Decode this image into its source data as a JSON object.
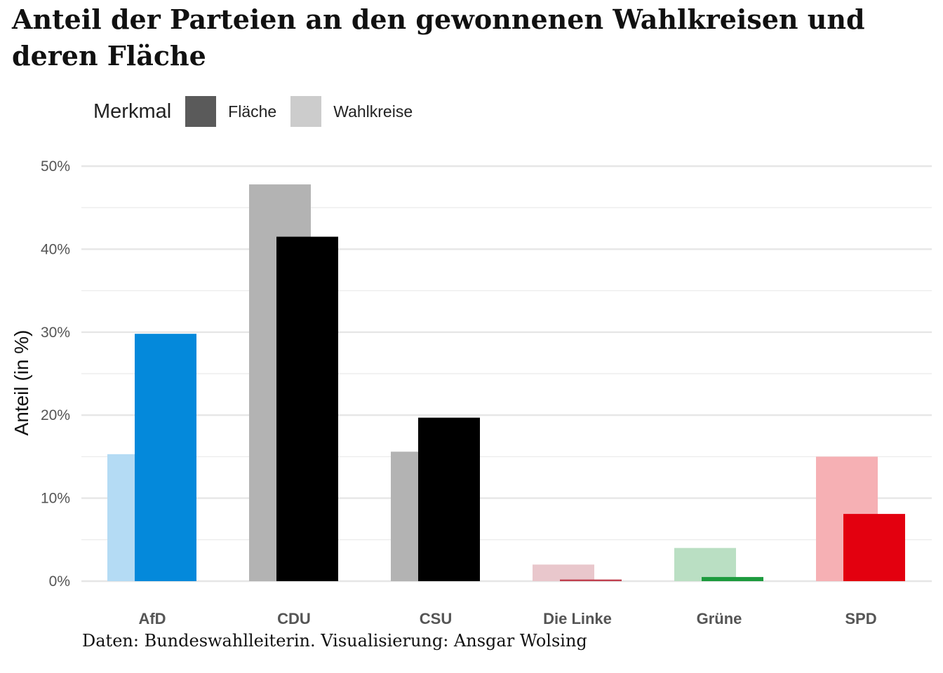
{
  "title": "Anteil der Parteien an den gewonnenen Wahlkreisen und deren Fläche",
  "caption": "Daten: Bundeswahlleiterin. Visualisierung: Ansgar Wolsing",
  "legend": {
    "title": "Merkmal",
    "items": [
      {
        "label": "Fläche",
        "color": "#5a5a5a"
      },
      {
        "label": "Wahlkreise",
        "color": "#cccccc"
      }
    ]
  },
  "chart_data": {
    "type": "bar",
    "categories": [
      "AfD",
      "CDU",
      "CSU",
      "Die Linke",
      "Grüne",
      "SPD"
    ],
    "series": [
      {
        "name": "Wahlkreise",
        "values": [
          15.3,
          47.8,
          15.6,
          2.0,
          4.0,
          15.0
        ]
      },
      {
        "name": "Fläche",
        "values": [
          29.8,
          41.5,
          19.7,
          0.2,
          0.5,
          8.1
        ]
      }
    ],
    "party_colors": [
      "#0489db",
      "#000000",
      "#000000",
      "#be3075",
      "#1aa037",
      "#e3000f"
    ],
    "wahlkreise_colors": [
      "#b4dbf4",
      "#b3b3b3",
      "#b3b3b3",
      "#e9c7cc",
      "#badfc3",
      "#f6b0b4"
    ],
    "flaeche_colors": [
      "#0489db",
      "#000000",
      "#000000",
      "#c0404f",
      "#1d9b3e",
      "#e3000f"
    ],
    "yticks": [
      "0%",
      "10%",
      "20%",
      "30%",
      "40%",
      "50%"
    ],
    "ytick_values": [
      0,
      10,
      20,
      30,
      40,
      50
    ],
    "ylabel": "Anteil (in %)",
    "xlabel": "",
    "ylim": [
      0,
      50
    ],
    "grid": true,
    "legend_position": "top"
  }
}
